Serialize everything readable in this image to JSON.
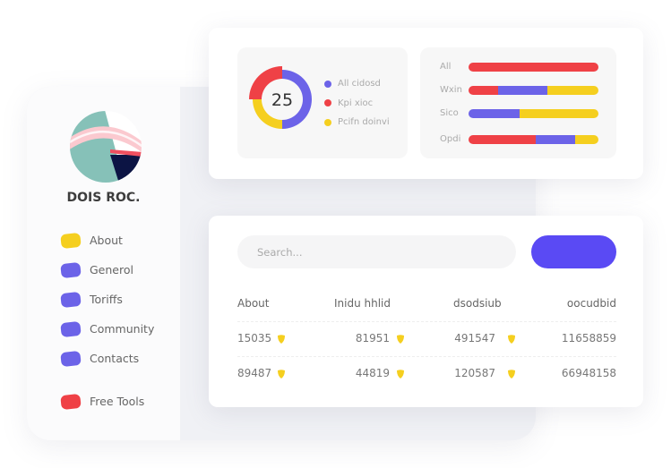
{
  "colors": {
    "red": "#ef4146",
    "blue": "#6c63e8",
    "yellow": "#f5cf1f",
    "button": "#5a4af4"
  },
  "sidebar": {
    "brand": "DOIS ROC.",
    "items": [
      {
        "label": "About",
        "color": "#f5cf1f"
      },
      {
        "label": "Generol",
        "color": "#6c63e8"
      },
      {
        "label": "Toriffs",
        "color": "#6c63e8"
      },
      {
        "label": "Community",
        "color": "#6c63e8"
      },
      {
        "label": "Contacts",
        "color": "#6c63e8"
      },
      {
        "label": "Free Tools",
        "color": "#ef4146"
      }
    ]
  },
  "donut": {
    "value": "25",
    "segments": [
      {
        "label": "All cidosd",
        "color": "#6c63e8",
        "share": 50
      },
      {
        "label": "Kpi xioc",
        "color": "#ef4146",
        "share": 25
      },
      {
        "label": "Pcifn doinvi",
        "color": "#f5cf1f",
        "share": 25
      }
    ]
  },
  "bars": [
    {
      "label": "All",
      "parts": [
        {
          "color": "#ef4146",
          "pct": 100
        }
      ]
    },
    {
      "label": "Wxin",
      "parts": [
        {
          "color": "#ef4146",
          "pct": 23
        },
        {
          "color": "#6c63e8",
          "pct": 38
        },
        {
          "color": "#f5cf1f",
          "pct": 39
        }
      ]
    },
    {
      "label": "Sico",
      "parts": [
        {
          "color": "#6c63e8",
          "pct": 39
        },
        {
          "color": "#f5cf1f",
          "pct": 61
        }
      ]
    },
    {
      "label": "Opdi",
      "parts": [
        {
          "color": "#ef4146",
          "pct": 52
        },
        {
          "color": "#6c63e8",
          "pct": 30
        },
        {
          "color": "#f5cf1f",
          "pct": 18
        }
      ]
    }
  ],
  "search": {
    "placeholder": "Search..."
  },
  "table": {
    "headers": [
      "About",
      "Inidu hhlid",
      "dsodsiub",
      "oocudbid"
    ],
    "rows": [
      [
        "15035",
        "81951",
        "491547",
        "11658859"
      ],
      [
        "89487",
        "44819",
        "120587",
        "66948158"
      ]
    ]
  }
}
